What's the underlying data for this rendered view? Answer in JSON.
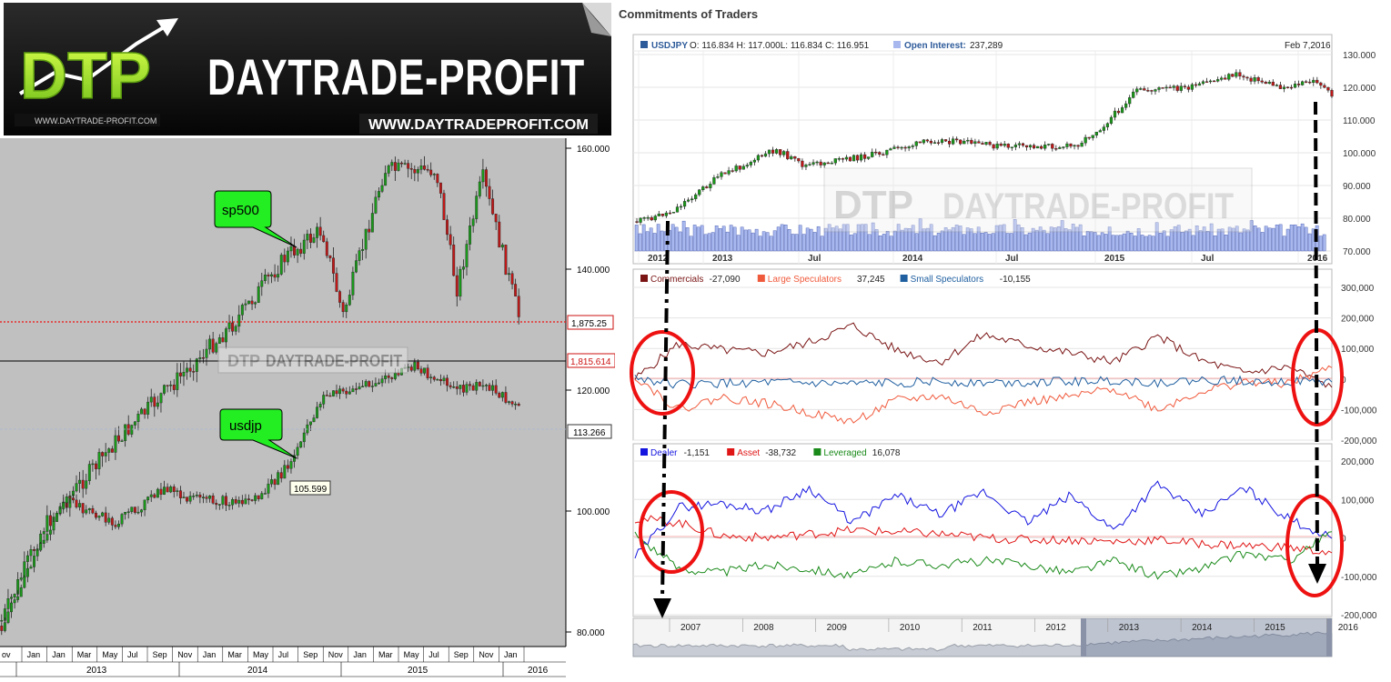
{
  "banner": {
    "logo_letters": "DTP",
    "brand": "DAYTRADE-PROFIT",
    "url_small": "WWW.DAYTRADE-PROFIT.COM",
    "url_large": "WWW.DAYTRADEPROFIT.COM"
  },
  "left_chart": {
    "watermark": "DAYTRADE-PROFIT",
    "callouts": {
      "sp500": "sp500",
      "usdjp": "usdjp"
    },
    "badges": {
      "sp_level": "1,875.25",
      "black_line": "1,815.614",
      "fx_level": "113.266",
      "point": "105.599"
    },
    "month_labels": [
      "ov",
      "Jan",
      "Jan",
      "Mar",
      "May",
      "Jul",
      "Sep",
      "Nov",
      "Jan",
      "Mar",
      "May",
      "Jul",
      "Sep",
      "Nov",
      "Jan",
      "Mar",
      "May",
      "Jul",
      "Sep",
      "Nov",
      "Jan"
    ],
    "year_labels": [
      "2013",
      "2014",
      "2015",
      "2016"
    ]
  },
  "cot": {
    "title": "Commitments of Traders",
    "price_panel": {
      "symbol": "USDJPY",
      "ohlc_text": "O: 116.834 H: 117.000L: 116.834 C: 116.951",
      "oi_label": "Open Interest:",
      "oi_value": "237,289",
      "date": "Feb 7,2016",
      "watermark": "DAYTRADE-PROFIT"
    },
    "panel2_legend": [
      {
        "name": "Commercials",
        "value": "-27,090",
        "color": "#7a1414"
      },
      {
        "name": "Large Speculators",
        "value": "37,245",
        "color": "#f05a3c"
      },
      {
        "name": "Small Speculators",
        "value": "-10,155",
        "color": "#1f5fa0"
      }
    ],
    "panel3_legend": [
      {
        "name": "Dealer",
        "value": "-1,151",
        "color": "#1515e0"
      },
      {
        "name": "Asset",
        "value": "-38,732",
        "color": "#e01515"
      },
      {
        "name": "Leveraged",
        "value": "16,078",
        "color": "#1a8a1a"
      }
    ],
    "navigator_years": [
      "2007",
      "2008",
      "2009",
      "2010",
      "2011",
      "2012",
      "2013",
      "2014",
      "2015",
      "2016"
    ]
  },
  "chart_data": [
    {
      "type": "line",
      "title": "",
      "y_axis_ticks": [
        "160.000",
        "140.000",
        "120.000",
        "100.000",
        "80.000"
      ],
      "ylim": [
        80,
        160
      ],
      "series": [
        {
          "name": "sp500",
          "x": [
            "2012-11",
            "2013-03",
            "2013-07",
            "2013-11",
            "2014-03",
            "2014-07",
            "2014-09",
            "2014-10",
            "2015-03",
            "2015-07",
            "2015-09",
            "2015-11",
            "2016-01"
          ],
          "values": [
            1420,
            1560,
            1690,
            1800,
            1870,
            1970,
            2010,
            1880,
            2100,
            2100,
            1920,
            2090,
            1880
          ]
        },
        {
          "name": "usdjp",
          "x": [
            "2012-11",
            "2013-05",
            "2013-09",
            "2014-01",
            "2014-03",
            "2014-07",
            "2014-08",
            "2014-10",
            "2014-12",
            "2015-03",
            "2015-06",
            "2015-09",
            "2015-12",
            "2016-01"
          ],
          "values": [
            81,
            102,
            98,
            104,
            102,
            101.5,
            102.5,
            108,
            119,
            121,
            124,
            120,
            121,
            117
          ]
        }
      ]
    },
    {
      "type": "line",
      "title": "USDJPY",
      "x_ticks": [
        "2012",
        "2013",
        "Jul",
        "2014",
        "Jul",
        "2015",
        "Jul",
        "2016"
      ],
      "y_ticks": [
        "130.000",
        "120.000",
        "110.000",
        "100.000",
        "90.000",
        "80.000",
        "70.000"
      ],
      "ylim": [
        70,
        130
      ],
      "series": [
        {
          "name": "USDJPY",
          "x": [
            "2012-10",
            "2012-12",
            "2013-02",
            "2013-05",
            "2013-06",
            "2013-09",
            "2013-12",
            "2014-03",
            "2014-08",
            "2014-10",
            "2014-12",
            "2015-03",
            "2015-06",
            "2015-09",
            "2015-12",
            "2016-01"
          ],
          "values": [
            79,
            82,
            93,
            101,
            96,
            99,
            104,
            102,
            102,
            108,
            119,
            120,
            124,
            120,
            122,
            117
          ]
        }
      ]
    },
    {
      "type": "line",
      "y_ticks": [
        "300,000",
        "200,000",
        "100,000",
        "0",
        "-100,000",
        "-200,000"
      ],
      "ylim": [
        -200000,
        300000
      ],
      "series": [
        {
          "name": "Commercials",
          "values": [
            0,
            115000,
            95000,
            85000,
            120000,
            175000,
            95000,
            55000,
            145000,
            110000,
            85000,
            55000,
            140000,
            60000,
            20000,
            40000,
            -27090
          ]
        },
        {
          "name": "Large Speculators",
          "values": [
            10000,
            -100000,
            -60000,
            -80000,
            -110000,
            -140000,
            -70000,
            -55000,
            -110000,
            -75000,
            -60000,
            -30000,
            -100000,
            -40000,
            -10000,
            -15000,
            37245
          ]
        },
        {
          "name": "Small Speculators",
          "values": [
            5000,
            -18000,
            -15000,
            -12000,
            -15000,
            -18000,
            -12000,
            -8000,
            -12000,
            -10000,
            -8000,
            -5000,
            -12000,
            -5000,
            -5000,
            -8000,
            -10155
          ]
        }
      ]
    },
    {
      "type": "line",
      "y_ticks": [
        "200,000",
        "100,000",
        "0",
        "-100,000",
        "-200,000"
      ],
      "ylim": [
        -200000,
        200000
      ],
      "series": [
        {
          "name": "Dealer",
          "values": [
            -50000,
            80000,
            90000,
            70000,
            130000,
            40000,
            110000,
            60000,
            120000,
            40000,
            110000,
            20000,
            140000,
            60000,
            130000,
            50000,
            -1151
          ]
        },
        {
          "name": "Asset",
          "values": [
            50000,
            40000,
            5000,
            0,
            10000,
            20000,
            15000,
            10000,
            0,
            -5000,
            -5000,
            -10000,
            -5000,
            -15000,
            -20000,
            -25000,
            -38732
          ]
        },
        {
          "name": "Leveraged",
          "values": [
            10000,
            -80000,
            -90000,
            -70000,
            -80000,
            -100000,
            -60000,
            -70000,
            -60000,
            -70000,
            -90000,
            -60000,
            -100000,
            -80000,
            -40000,
            -60000,
            16078
          ]
        }
      ]
    }
  ]
}
